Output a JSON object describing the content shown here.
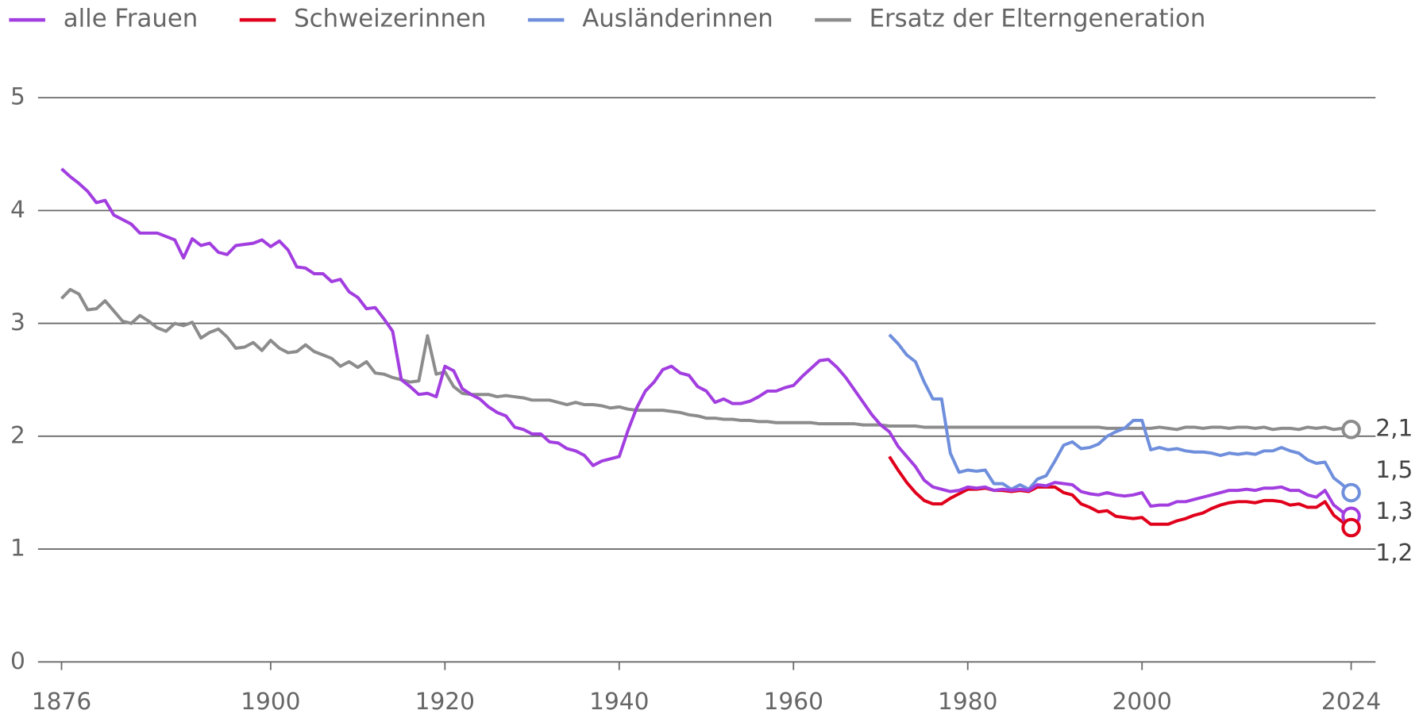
{
  "chart_data": {
    "type": "line",
    "x": [
      1876,
      1877,
      1878,
      1879,
      1880,
      1881,
      1882,
      1883,
      1884,
      1885,
      1886,
      1887,
      1888,
      1889,
      1890,
      1891,
      1892,
      1893,
      1894,
      1895,
      1896,
      1897,
      1898,
      1899,
      1900,
      1901,
      1902,
      1903,
      1904,
      1905,
      1906,
      1907,
      1908,
      1909,
      1910,
      1911,
      1912,
      1913,
      1914,
      1915,
      1916,
      1917,
      1918,
      1919,
      1920,
      1921,
      1922,
      1923,
      1924,
      1925,
      1926,
      1927,
      1928,
      1929,
      1930,
      1931,
      1932,
      1933,
      1934,
      1935,
      1936,
      1937,
      1938,
      1939,
      1940,
      1941,
      1942,
      1943,
      1944,
      1945,
      1946,
      1947,
      1948,
      1949,
      1950,
      1951,
      1952,
      1953,
      1954,
      1955,
      1956,
      1957,
      1958,
      1959,
      1960,
      1961,
      1962,
      1963,
      1964,
      1965,
      1966,
      1967,
      1968,
      1969,
      1970,
      1971,
      1972,
      1973,
      1974,
      1975,
      1976,
      1977,
      1978,
      1979,
      1980,
      1981,
      1982,
      1983,
      1984,
      1985,
      1986,
      1987,
      1988,
      1989,
      1990,
      1991,
      1992,
      1993,
      1994,
      1995,
      1996,
      1997,
      1998,
      1999,
      2000,
      2001,
      2002,
      2003,
      2004,
      2005,
      2006,
      2007,
      2008,
      2009,
      2010,
      2011,
      2012,
      2013,
      2014,
      2015,
      2016,
      2017,
      2018,
      2019,
      2020,
      2021,
      2022,
      2023,
      2024
    ],
    "series": [
      {
        "name": "alle Frauen",
        "color": "#a23ee0",
        "end_label": "1,3",
        "values": [
          4.37,
          4.3,
          4.24,
          4.17,
          4.07,
          4.09,
          3.96,
          3.92,
          3.88,
          3.8,
          3.8,
          3.8,
          3.77,
          3.74,
          3.58,
          3.75,
          3.69,
          3.71,
          3.63,
          3.61,
          3.69,
          3.7,
          3.71,
          3.74,
          3.68,
          3.73,
          3.65,
          3.5,
          3.49,
          3.44,
          3.44,
          3.37,
          3.39,
          3.28,
          3.23,
          3.13,
          3.14,
          3.04,
          2.93,
          2.5,
          2.44,
          2.37,
          2.38,
          2.35,
          2.62,
          2.58,
          2.42,
          2.37,
          2.33,
          2.26,
          2.21,
          2.18,
          2.08,
          2.06,
          2.02,
          2.02,
          1.95,
          1.94,
          1.89,
          1.87,
          1.83,
          1.74,
          1.78,
          1.8,
          1.82,
          2.05,
          2.25,
          2.4,
          2.48,
          2.59,
          2.62,
          2.56,
          2.54,
          2.44,
          2.4,
          2.3,
          2.33,
          2.29,
          2.29,
          2.31,
          2.35,
          2.4,
          2.4,
          2.43,
          2.45,
          2.53,
          2.6,
          2.67,
          2.68,
          2.61,
          2.52,
          2.41,
          2.3,
          2.19,
          2.1,
          2.04,
          1.91,
          1.82,
          1.73,
          1.61,
          1.55,
          1.53,
          1.51,
          1.52,
          1.55,
          1.54,
          1.55,
          1.52,
          1.53,
          1.52,
          1.53,
          1.52,
          1.57,
          1.56,
          1.59,
          1.58,
          1.57,
          1.51,
          1.49,
          1.48,
          1.5,
          1.48,
          1.47,
          1.48,
          1.5,
          1.38,
          1.39,
          1.39,
          1.42,
          1.42,
          1.44,
          1.46,
          1.48,
          1.5,
          1.52,
          1.52,
          1.53,
          1.52,
          1.54,
          1.54,
          1.55,
          1.52,
          1.52,
          1.48,
          1.46,
          1.52,
          1.39,
          1.33,
          1.29
        ]
      },
      {
        "name": "Schweizerinnen",
        "color": "#e0001b",
        "end_label": "1,2",
        "values": [
          null,
          null,
          null,
          null,
          null,
          null,
          null,
          null,
          null,
          null,
          null,
          null,
          null,
          null,
          null,
          null,
          null,
          null,
          null,
          null,
          null,
          null,
          null,
          null,
          null,
          null,
          null,
          null,
          null,
          null,
          null,
          null,
          null,
          null,
          null,
          null,
          null,
          null,
          null,
          null,
          null,
          null,
          null,
          null,
          null,
          null,
          null,
          null,
          null,
          null,
          null,
          null,
          null,
          null,
          null,
          null,
          null,
          null,
          null,
          null,
          null,
          null,
          null,
          null,
          null,
          null,
          null,
          null,
          null,
          null,
          null,
          null,
          null,
          null,
          null,
          null,
          null,
          null,
          null,
          null,
          null,
          null,
          null,
          null,
          null,
          null,
          null,
          null,
          null,
          null,
          null,
          null,
          null,
          null,
          null,
          1.82,
          1.7,
          1.59,
          1.5,
          1.43,
          1.4,
          1.4,
          1.45,
          1.49,
          1.53,
          1.53,
          1.54,
          1.52,
          1.52,
          1.51,
          1.52,
          1.51,
          1.55,
          1.55,
          1.55,
          1.5,
          1.48,
          1.4,
          1.37,
          1.33,
          1.34,
          1.29,
          1.28,
          1.27,
          1.28,
          1.22,
          1.22,
          1.22,
          1.25,
          1.27,
          1.3,
          1.32,
          1.36,
          1.39,
          1.41,
          1.42,
          1.42,
          1.41,
          1.43,
          1.43,
          1.42,
          1.39,
          1.4,
          1.37,
          1.37,
          1.42,
          1.3,
          1.24,
          1.19
        ]
      },
      {
        "name": "Ausländerinnen",
        "color": "#6f8fdc",
        "end_label": "1,5",
        "values": [
          null,
          null,
          null,
          null,
          null,
          null,
          null,
          null,
          null,
          null,
          null,
          null,
          null,
          null,
          null,
          null,
          null,
          null,
          null,
          null,
          null,
          null,
          null,
          null,
          null,
          null,
          null,
          null,
          null,
          null,
          null,
          null,
          null,
          null,
          null,
          null,
          null,
          null,
          null,
          null,
          null,
          null,
          null,
          null,
          null,
          null,
          null,
          null,
          null,
          null,
          null,
          null,
          null,
          null,
          null,
          null,
          null,
          null,
          null,
          null,
          null,
          null,
          null,
          null,
          null,
          null,
          null,
          null,
          null,
          null,
          null,
          null,
          null,
          null,
          null,
          null,
          null,
          null,
          null,
          null,
          null,
          null,
          null,
          null,
          null,
          null,
          null,
          null,
          null,
          null,
          null,
          null,
          null,
          null,
          null,
          2.9,
          2.82,
          2.72,
          2.66,
          2.48,
          2.33,
          2.33,
          1.85,
          1.68,
          1.7,
          1.69,
          1.7,
          1.58,
          1.58,
          1.53,
          1.57,
          1.53,
          1.62,
          1.65,
          1.78,
          1.92,
          1.95,
          1.89,
          1.9,
          1.93,
          2.0,
          2.04,
          2.07,
          2.14,
          2.14,
          1.88,
          1.9,
          1.88,
          1.89,
          1.87,
          1.86,
          1.86,
          1.85,
          1.83,
          1.85,
          1.84,
          1.85,
          1.84,
          1.87,
          1.87,
          1.9,
          1.87,
          1.85,
          1.79,
          1.76,
          1.77,
          1.63,
          1.57,
          1.5
        ]
      },
      {
        "name": "Ersatz der Elterngeneration",
        "color": "#8c8c8c",
        "end_label": "2,1",
        "values": [
          3.22,
          3.3,
          3.26,
          3.12,
          3.13,
          3.2,
          3.11,
          3.02,
          3.0,
          3.07,
          3.02,
          2.96,
          2.93,
          3.0,
          2.98,
          3.01,
          2.87,
          2.92,
          2.95,
          2.88,
          2.78,
          2.79,
          2.83,
          2.76,
          2.85,
          2.78,
          2.74,
          2.75,
          2.81,
          2.75,
          2.72,
          2.69,
          2.62,
          2.66,
          2.61,
          2.66,
          2.56,
          2.55,
          2.52,
          2.5,
          2.48,
          2.49,
          2.89,
          2.55,
          2.57,
          2.44,
          2.38,
          2.37,
          2.37,
          2.37,
          2.35,
          2.36,
          2.35,
          2.34,
          2.32,
          2.32,
          2.32,
          2.3,
          2.28,
          2.3,
          2.28,
          2.28,
          2.27,
          2.25,
          2.26,
          2.24,
          2.23,
          2.23,
          2.23,
          2.23,
          2.22,
          2.21,
          2.19,
          2.18,
          2.16,
          2.16,
          2.15,
          2.15,
          2.14,
          2.14,
          2.13,
          2.13,
          2.12,
          2.12,
          2.12,
          2.12,
          2.12,
          2.11,
          2.11,
          2.11,
          2.11,
          2.11,
          2.1,
          2.1,
          2.1,
          2.09,
          2.09,
          2.09,
          2.09,
          2.08,
          2.08,
          2.08,
          2.08,
          2.08,
          2.08,
          2.08,
          2.08,
          2.08,
          2.08,
          2.08,
          2.08,
          2.08,
          2.08,
          2.08,
          2.08,
          2.08,
          2.08,
          2.08,
          2.08,
          2.08,
          2.07,
          2.07,
          2.07,
          2.07,
          2.07,
          2.07,
          2.08,
          2.07,
          2.06,
          2.08,
          2.08,
          2.07,
          2.08,
          2.08,
          2.07,
          2.08,
          2.08,
          2.07,
          2.08,
          2.06,
          2.07,
          2.07,
          2.06,
          2.08,
          2.07,
          2.08,
          2.06,
          2.07,
          2.06
        ]
      }
    ],
    "xlim": [
      1873.3,
      2026.8
    ],
    "xticks": [
      1876,
      1900,
      1920,
      1940,
      1960,
      1980,
      2000,
      2024
    ],
    "ylim": [
      0,
      5
    ],
    "yticks": [
      0,
      1,
      2,
      3,
      4,
      5
    ],
    "grid": true
  }
}
